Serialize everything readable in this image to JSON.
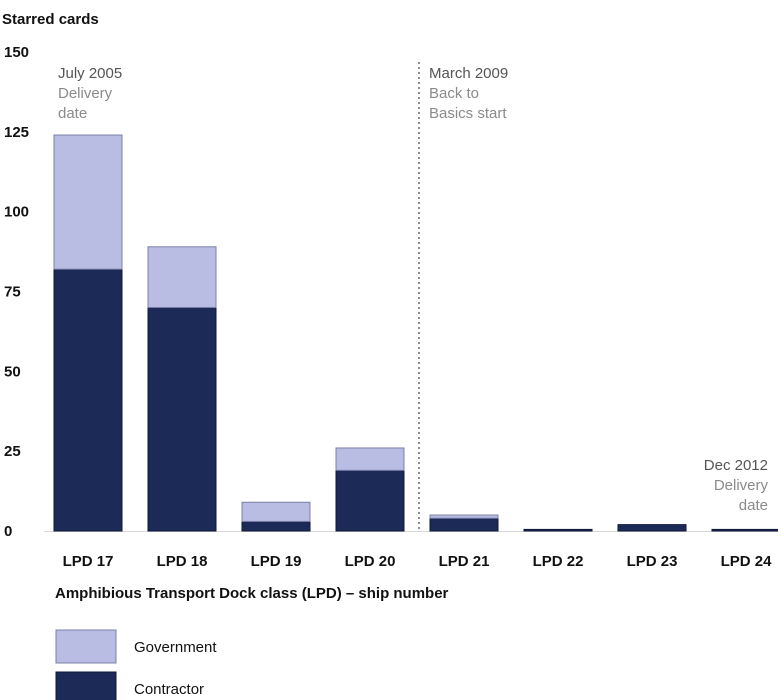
{
  "chart_data": {
    "type": "bar",
    "stacked": true,
    "ylabel": "Starred cards",
    "xlabel": "Amphibious Transport Dock class (LPD) – ship number",
    "categories": [
      "LPD 17",
      "LPD 18",
      "LPD 19",
      "LPD 20",
      "LPD 21",
      "LPD 22",
      "LPD 23",
      "LPD 24"
    ],
    "yticks": [
      0,
      25,
      50,
      75,
      100,
      125,
      150
    ],
    "ylim": [
      0,
      150
    ],
    "series": [
      {
        "name": "Contractor",
        "color": "#1c2a57",
        "values": [
          82,
          70,
          3,
          19,
          4,
          0.5,
          2,
          0.5
        ]
      },
      {
        "name": "Government",
        "color": "#b9bde3",
        "values": [
          42,
          19,
          6,
          7,
          1,
          0,
          0,
          0
        ]
      }
    ],
    "legend": {
      "position": "bottom-left",
      "order": [
        "Government",
        "Contractor"
      ]
    },
    "annotations": [
      {
        "date": "July 2005",
        "text": [
          "Delivery",
          "date"
        ],
        "category": "LPD 17",
        "align": "left"
      },
      {
        "date": "March 2009",
        "text": [
          "Back to",
          "Basics start"
        ],
        "category": "LPD 21",
        "align": "left",
        "divider": true
      },
      {
        "date": "Dec 2012",
        "text": [
          "Delivery",
          "date"
        ],
        "category": "LPD 24",
        "align": "right"
      }
    ]
  }
}
